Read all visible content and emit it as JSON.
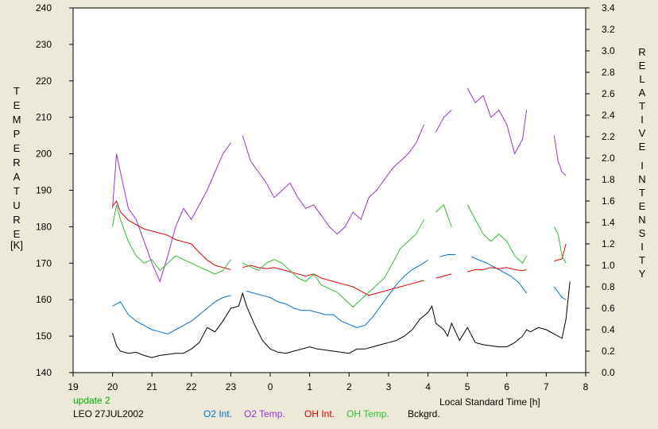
{
  "chart_data": {
    "type": "line",
    "left_axis_letters": [
      "T",
      "E",
      "M",
      "P",
      "E",
      "R",
      "A",
      "T",
      "U",
      "R",
      "E"
    ],
    "left_axis_unit": "[K]",
    "right_axis_letters_1": [
      "R",
      "E",
      "L",
      "A",
      "T",
      "I",
      "V",
      "E"
    ],
    "right_axis_letters_2": [
      "I",
      "N",
      "T",
      "E",
      "N",
      "S",
      "I",
      "T",
      "Y"
    ],
    "xlabel": "Local Standard Time [h]",
    "x_ticks": [
      19,
      20,
      21,
      22,
      23,
      24,
      25,
      26,
      27,
      28,
      29,
      30,
      31,
      32
    ],
    "x_tick_labels": [
      "19",
      "20",
      "21",
      "22",
      "23",
      "0",
      "1",
      "2",
      "3",
      "4",
      "5",
      "6",
      "7",
      "8"
    ],
    "xlim": [
      19,
      32
    ],
    "y_left_ticks": [
      140,
      150,
      160,
      170,
      180,
      190,
      200,
      210,
      220,
      230,
      240
    ],
    "y_left_lim": [
      140,
      240
    ],
    "y_right_ticks": [
      "0.0",
      "0.2",
      "0.4",
      "0.6",
      "0.8",
      "1.0",
      "1.2",
      "1.4",
      "1.6",
      "1.8",
      "2.0",
      "2.2",
      "2.4",
      "2.6",
      "2.8",
      "3.0",
      "3.2",
      "3.4"
    ],
    "y_right_lim": [
      0.0,
      3.4
    ],
    "series": [
      {
        "name": "O2 Int.",
        "axis": "right",
        "color": "#0070d0",
        "x": [
          20.0,
          20.2,
          20.4,
          20.6,
          20.8,
          21.0,
          21.2,
          21.4,
          21.6,
          21.8,
          22.0,
          22.2,
          22.4,
          22.6,
          22.8,
          23.0,
          23.4,
          23.6,
          23.8,
          24.0,
          24.2,
          24.4,
          24.6,
          24.8,
          25.0,
          25.2,
          25.4,
          25.6,
          25.8,
          26.0,
          26.2,
          26.4,
          26.6,
          26.8,
          27.0,
          27.2,
          27.4,
          27.6,
          27.8,
          28.0,
          28.3,
          28.5,
          28.7,
          29.1,
          29.3,
          29.5,
          29.7,
          29.9,
          30.1,
          30.3,
          30.5,
          31.2,
          31.4,
          31.5
        ],
        "y": [
          0.62,
          0.66,
          0.54,
          0.48,
          0.44,
          0.4,
          0.38,
          0.36,
          0.4,
          0.44,
          0.48,
          0.54,
          0.6,
          0.66,
          0.7,
          0.72,
          0.76,
          0.74,
          0.72,
          0.7,
          0.66,
          0.64,
          0.6,
          0.58,
          0.58,
          0.56,
          0.54,
          0.54,
          0.48,
          0.45,
          0.42,
          0.44,
          0.52,
          0.62,
          0.72,
          0.82,
          0.9,
          0.96,
          1.0,
          1.05,
          1.08,
          1.1,
          1.1,
          1.08,
          1.05,
          1.02,
          0.98,
          0.94,
          0.9,
          0.84,
          0.74,
          0.8,
          0.7,
          0.68
        ]
      },
      {
        "name": "O2 Temp.",
        "axis": "left",
        "color": "#9933cc",
        "x": [
          20.0,
          20.1,
          20.2,
          20.4,
          20.6,
          20.8,
          21.0,
          21.2,
          21.4,
          21.6,
          21.8,
          22.0,
          22.2,
          22.4,
          22.6,
          22.8,
          23.0,
          23.3,
          23.5,
          23.7,
          23.9,
          24.1,
          24.3,
          24.5,
          24.7,
          24.9,
          25.1,
          25.3,
          25.5,
          25.7,
          25.9,
          26.1,
          26.3,
          26.5,
          26.7,
          26.9,
          27.1,
          27.3,
          27.5,
          27.7,
          27.9,
          28.2,
          28.4,
          28.6,
          29.0,
          29.2,
          29.4,
          29.6,
          29.8,
          30.0,
          30.2,
          30.4,
          30.5,
          31.2,
          31.3,
          31.4,
          31.5
        ],
        "y": [
          185,
          200,
          195,
          185,
          182,
          176,
          170,
          165,
          172,
          180,
          185,
          182,
          186,
          190,
          195,
          200,
          203,
          205,
          198,
          195,
          192,
          188,
          190,
          192,
          188,
          185,
          186,
          183,
          180,
          178,
          180,
          184,
          182,
          188,
          190,
          193,
          196,
          198,
          200,
          203,
          208,
          206,
          210,
          212,
          218,
          214,
          216,
          210,
          212,
          208,
          200,
          204,
          212,
          205,
          198,
          195,
          194
        ]
      },
      {
        "name": "OH Int.",
        "axis": "right",
        "color": "#dd0000",
        "x": [
          20.0,
          20.1,
          20.2,
          20.4,
          20.6,
          20.8,
          21.0,
          21.2,
          21.4,
          21.6,
          21.8,
          22.0,
          22.2,
          22.4,
          22.6,
          22.8,
          23.0,
          23.3,
          23.5,
          23.7,
          23.9,
          24.1,
          24.3,
          24.5,
          24.7,
          24.9,
          25.1,
          25.3,
          25.5,
          25.7,
          25.9,
          26.1,
          26.3,
          26.5,
          26.7,
          26.9,
          27.1,
          27.3,
          27.5,
          27.7,
          27.9,
          28.2,
          28.4,
          28.6,
          29.0,
          29.2,
          29.4,
          29.6,
          29.8,
          30.0,
          30.2,
          30.4,
          30.5,
          31.2,
          31.4,
          31.5
        ],
        "y": [
          1.55,
          1.6,
          1.5,
          1.42,
          1.38,
          1.34,
          1.32,
          1.3,
          1.28,
          1.24,
          1.22,
          1.2,
          1.12,
          1.05,
          1.0,
          0.98,
          0.96,
          0.98,
          1.0,
          0.98,
          0.97,
          0.98,
          0.96,
          0.94,
          0.92,
          0.9,
          0.92,
          0.88,
          0.86,
          0.84,
          0.82,
          0.8,
          0.76,
          0.72,
          0.74,
          0.76,
          0.78,
          0.8,
          0.82,
          0.84,
          0.86,
          0.88,
          0.9,
          0.92,
          0.94,
          0.96,
          0.96,
          0.98,
          0.97,
          0.98,
          0.96,
          0.95,
          0.96,
          1.04,
          1.06,
          1.2
        ]
      },
      {
        "name": "OH Temp.",
        "axis": "left",
        "color": "#33bb33",
        "x": [
          20.0,
          20.1,
          20.2,
          20.4,
          20.6,
          20.8,
          21.0,
          21.2,
          21.4,
          21.6,
          21.8,
          22.0,
          22.2,
          22.4,
          22.6,
          22.8,
          23.0,
          23.3,
          23.5,
          23.7,
          23.9,
          24.1,
          24.3,
          24.5,
          24.7,
          24.9,
          25.1,
          25.3,
          25.5,
          25.7,
          25.9,
          26.1,
          26.3,
          26.5,
          26.7,
          26.9,
          27.1,
          27.3,
          27.5,
          27.7,
          27.9,
          28.2,
          28.4,
          28.6,
          29.0,
          29.2,
          29.4,
          29.6,
          29.8,
          30.0,
          30.2,
          30.4,
          30.5,
          31.2,
          31.3,
          31.4,
          31.5
        ],
        "y": [
          180,
          186,
          182,
          176,
          172,
          170,
          171,
          168,
          170,
          172,
          171,
          170,
          169,
          168,
          167,
          168,
          171,
          170,
          169,
          168,
          170,
          171,
          170,
          168,
          166,
          165,
          167,
          164,
          163,
          162,
          160,
          158,
          160,
          162,
          164,
          166,
          170,
          174,
          176,
          178,
          182,
          184,
          186,
          180,
          186,
          182,
          178,
          176,
          178,
          176,
          172,
          170,
          172,
          180,
          178,
          172,
          170
        ]
      },
      {
        "name": "Bckgrd.",
        "axis": "right",
        "color": "#000000",
        "x": [
          20.0,
          20.1,
          20.2,
          20.4,
          20.6,
          20.8,
          21.0,
          21.2,
          21.4,
          21.6,
          21.8,
          22.0,
          22.2,
          22.4,
          22.6,
          22.8,
          23.0,
          23.2,
          23.3,
          23.4,
          23.6,
          23.8,
          24.0,
          24.2,
          24.4,
          24.6,
          24.8,
          25.0,
          25.2,
          25.4,
          25.6,
          25.8,
          26.0,
          26.2,
          26.4,
          26.6,
          26.8,
          27.0,
          27.2,
          27.4,
          27.6,
          27.8,
          28.0,
          28.1,
          28.2,
          28.4,
          28.5,
          28.6,
          28.8,
          29.0,
          29.2,
          29.4,
          29.6,
          29.8,
          30.0,
          30.2,
          30.4,
          30.5,
          30.6,
          30.8,
          31.0,
          31.2,
          31.4,
          31.5,
          31.6
        ],
        "y": [
          0.37,
          0.25,
          0.2,
          0.18,
          0.19,
          0.16,
          0.14,
          0.16,
          0.17,
          0.18,
          0.18,
          0.22,
          0.28,
          0.42,
          0.38,
          0.48,
          0.6,
          0.62,
          0.74,
          0.62,
          0.45,
          0.3,
          0.22,
          0.19,
          0.18,
          0.2,
          0.22,
          0.24,
          0.22,
          0.21,
          0.2,
          0.19,
          0.18,
          0.22,
          0.22,
          0.24,
          0.26,
          0.28,
          0.3,
          0.34,
          0.4,
          0.5,
          0.56,
          0.62,
          0.46,
          0.4,
          0.34,
          0.46,
          0.3,
          0.42,
          0.28,
          0.26,
          0.25,
          0.24,
          0.24,
          0.28,
          0.34,
          0.4,
          0.38,
          0.42,
          0.4,
          0.36,
          0.32,
          0.5,
          0.85
        ]
      }
    ]
  },
  "footer": {
    "update_text": "update 2",
    "update_color": "#00aa00",
    "site_date": "LEO 27JUL2002"
  }
}
